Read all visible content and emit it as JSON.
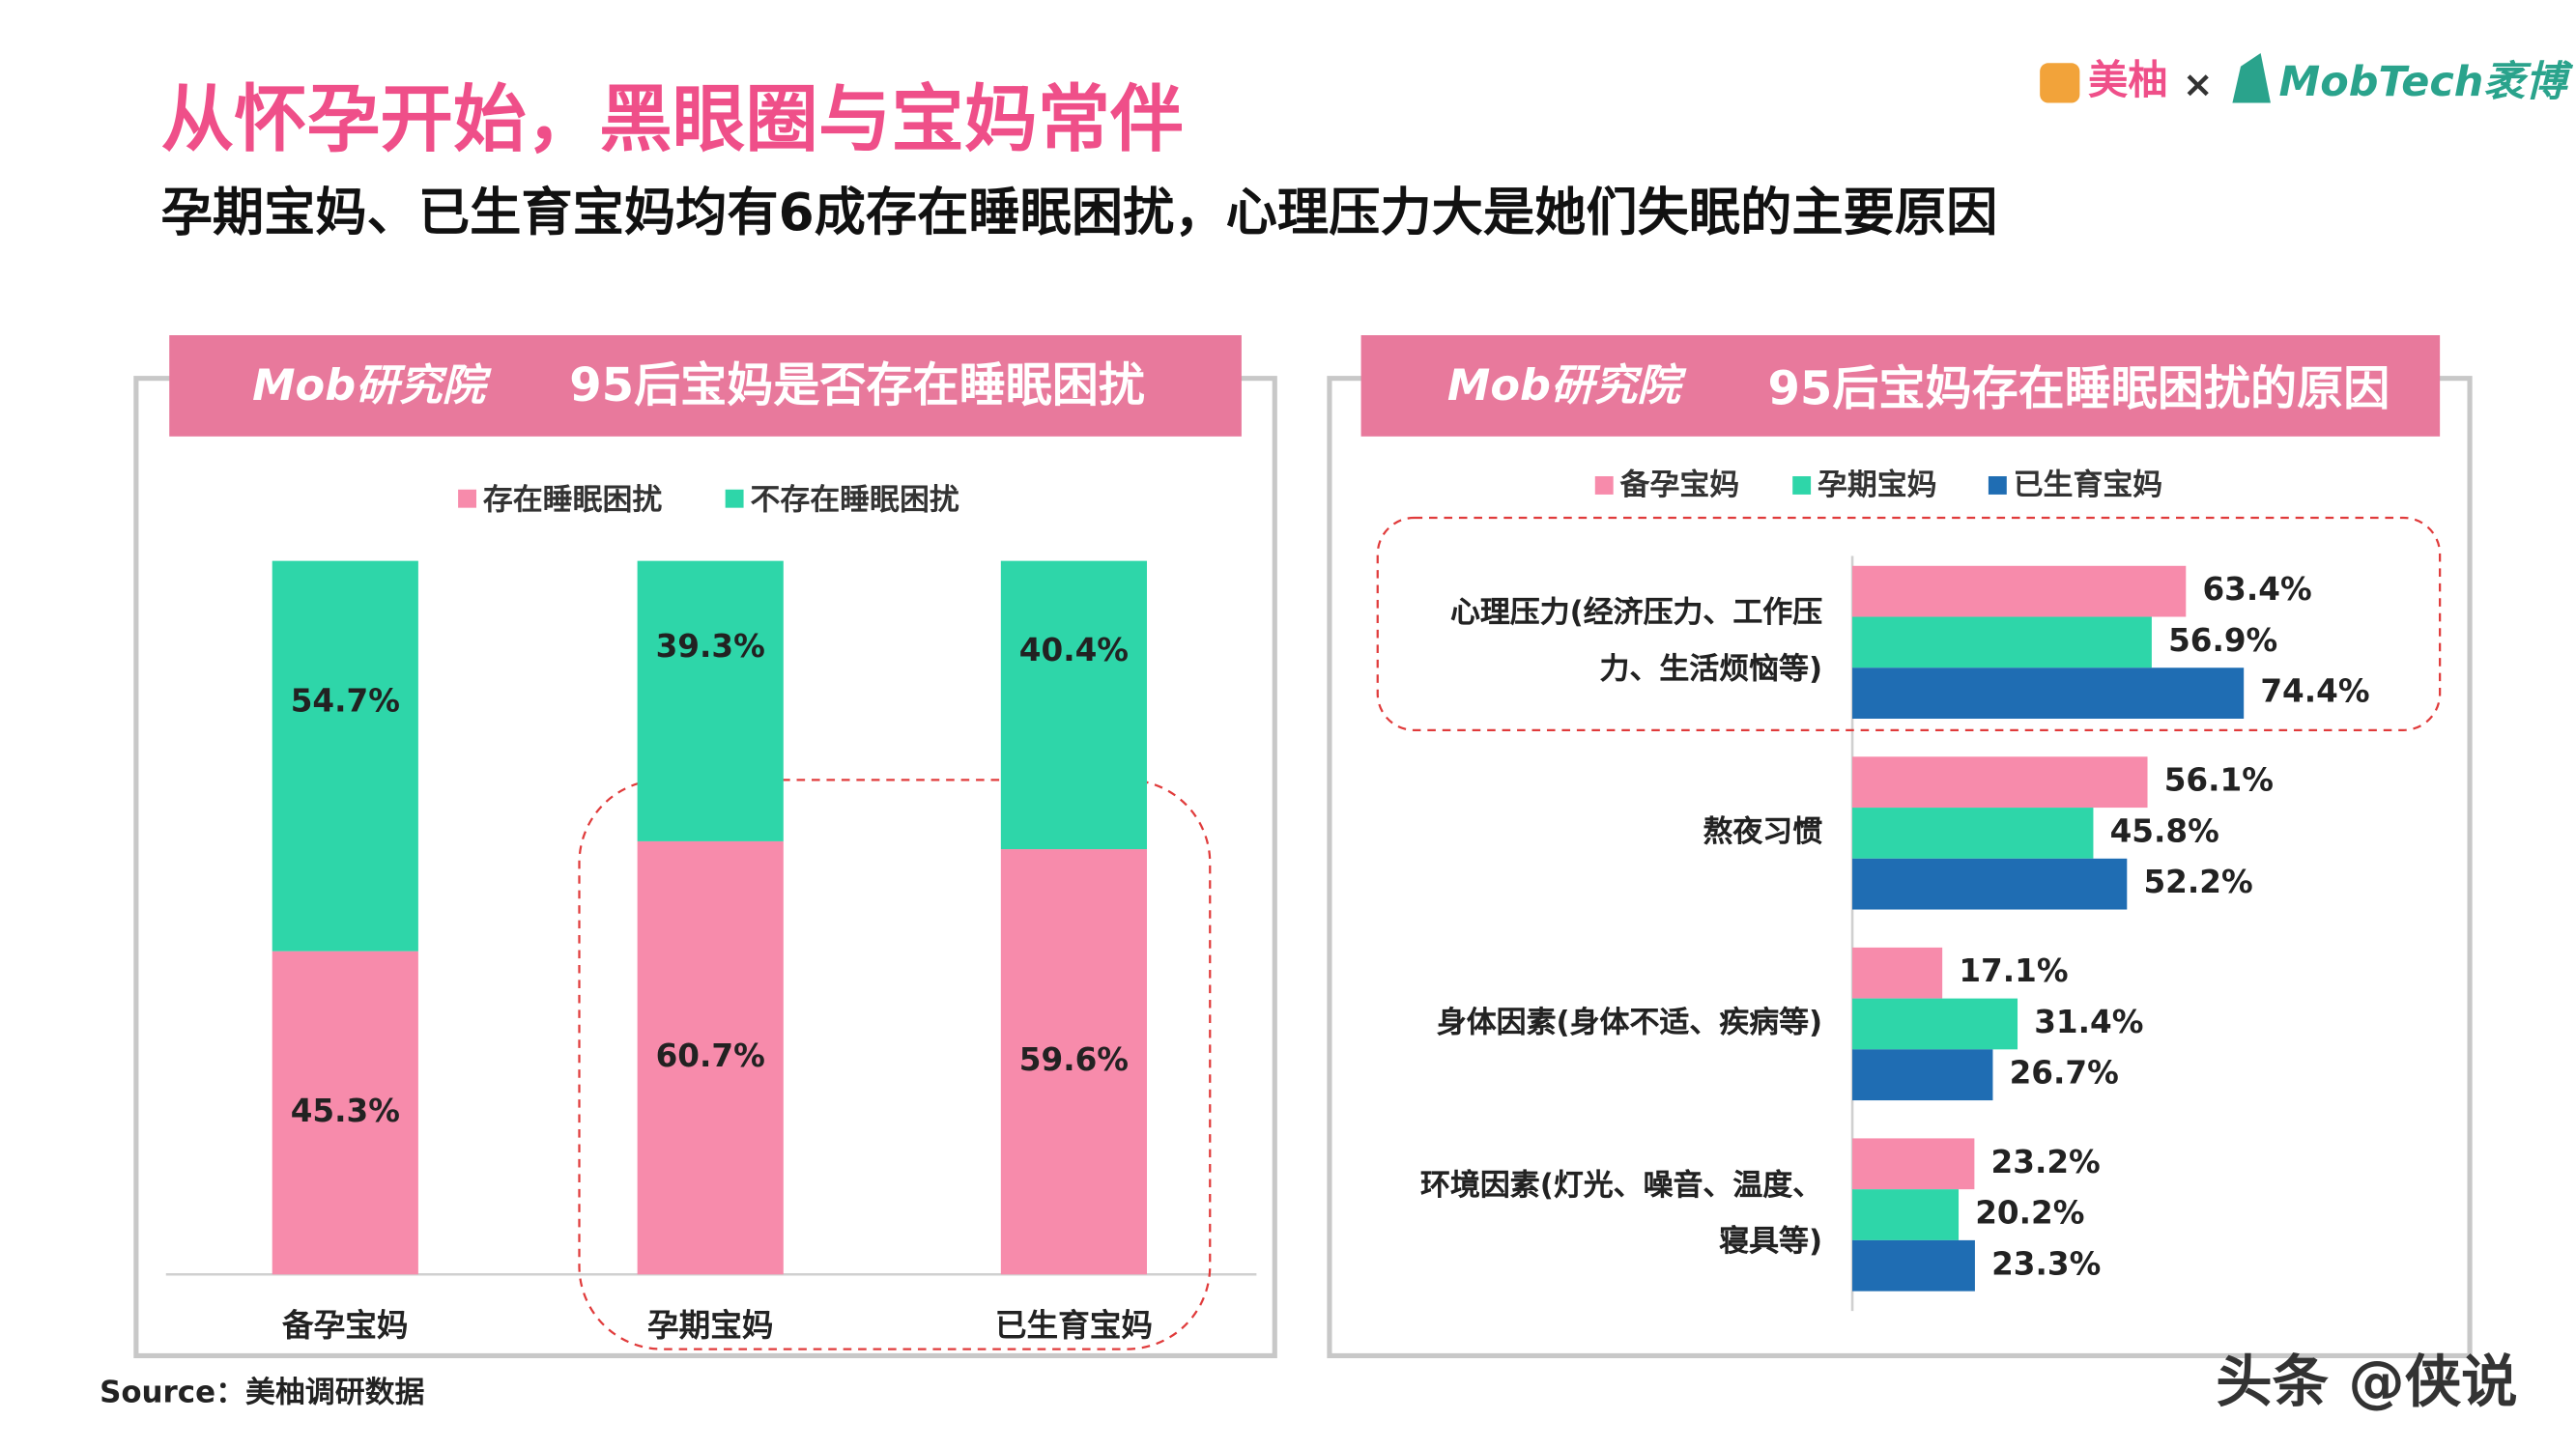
{
  "header": {
    "title": "从怀孕开始，黑眼圈与宝妈常伴",
    "subtitle": "孕期宝妈、已生育宝妈均有6成存在睡眠困扰，心理压力大是她们失眠的主要原因"
  },
  "logos": {
    "meiyou": "美柚",
    "cross": "×",
    "mobtech": "MobTech袤博",
    "institute": "Mob研究院"
  },
  "source": "Source：美柚调研数据",
  "watermark": "头条 @侠说",
  "chart_data": [
    {
      "type": "stacked-bar",
      "title": "95后宝妈是否存在睡眠困扰",
      "categories": [
        "备孕宝妈",
        "孕期宝妈",
        "已生育宝妈"
      ],
      "series": [
        {
          "name": "存在睡眠困扰",
          "color": "#f78bab",
          "values": [
            45.3,
            60.7,
            59.6
          ],
          "value_labels": [
            "45.3%",
            "60.7%",
            "59.6%"
          ]
        },
        {
          "name": "不存在睡眠困扰",
          "color": "#2ed6a9",
          "values": [
            54.7,
            39.3,
            40.4
          ],
          "value_labels": [
            "54.7%",
            "39.3%",
            "40.4%"
          ]
        }
      ]
    },
    {
      "type": "hbar",
      "title": "95后宝妈存在睡眠困扰的原因",
      "categories": [
        "心理压力(经济压力、工作压力、生活烦恼等)",
        "熬夜习惯",
        "身体因素(身体不适、疾病等)",
        "环境因素(灯光、噪音、温度、寝具等)"
      ],
      "series": [
        {
          "name": "备孕宝妈",
          "color": "#f78bab",
          "values": [
            63.4,
            56.1,
            17.1,
            23.2
          ],
          "value_labels": [
            "63.4%",
            "56.1%",
            "17.1%",
            "23.2%"
          ]
        },
        {
          "name": "孕期宝妈",
          "color": "#2ed6a9",
          "values": [
            56.9,
            45.8,
            31.4,
            20.2
          ],
          "value_labels": [
            "56.9%",
            "45.8%",
            "31.4%",
            "20.2%"
          ]
        },
        {
          "name": "已生育宝妈",
          "color": "#1f6db3",
          "values": [
            74.4,
            52.2,
            26.7,
            23.3
          ],
          "value_labels": [
            "74.4%",
            "52.2%",
            "26.7%",
            "23.3%"
          ]
        }
      ]
    }
  ]
}
